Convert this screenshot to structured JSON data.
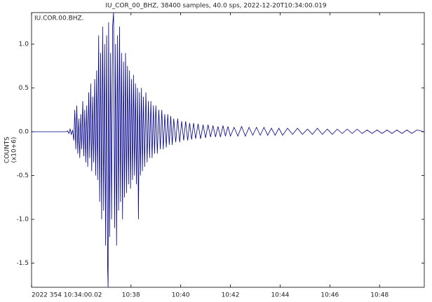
{
  "chart_data": {
    "type": "line",
    "title": "IU_COR_00_BHZ, 38400 samples, 40.0 sps, 2022-12-20T10:34:00.019",
    "ylabel": "COUNTS",
    "ylabel_units": "(x10+6)",
    "x": [
      0,
      1.4,
      1.45,
      1.5,
      1.55,
      1.6,
      1.65,
      1.7,
      1.74,
      1.78,
      1.82,
      1.86,
      1.9,
      1.94,
      1.98,
      2.02,
      2.06,
      2.1,
      2.14,
      2.18,
      2.22,
      2.26,
      2.3,
      2.34,
      2.38,
      2.42,
      2.46,
      2.5,
      2.54,
      2.58,
      2.62,
      2.66,
      2.7,
      2.74,
      2.78,
      2.82,
      2.86,
      2.9,
      2.94,
      2.98,
      3.02,
      3.06,
      3.08,
      3.1,
      3.14,
      3.18,
      3.22,
      3.26,
      3.3,
      3.34,
      3.38,
      3.42,
      3.46,
      3.5,
      3.54,
      3.58,
      3.62,
      3.66,
      3.7,
      3.74,
      3.78,
      3.82,
      3.86,
      3.9,
      3.94,
      3.98,
      4.02,
      4.06,
      4.1,
      4.14,
      4.18,
      4.22,
      4.26,
      4.3,
      4.34,
      4.38,
      4.42,
      4.46,
      4.5,
      4.55,
      4.6,
      4.65,
      4.7,
      4.75,
      4.8,
      4.85,
      4.9,
      4.95,
      5.0,
      5.06,
      5.12,
      5.18,
      5.24,
      5.3,
      5.36,
      5.42,
      5.48,
      5.54,
      5.6,
      5.66,
      5.72,
      5.8,
      5.88,
      5.96,
      6.04,
      6.12,
      6.2,
      6.28,
      6.36,
      6.44,
      6.52,
      6.6,
      6.7,
      6.8,
      6.9,
      7.0,
      7.1,
      7.2,
      7.3,
      7.4,
      7.5,
      7.6,
      7.7,
      7.8,
      7.9,
      8.0,
      8.15,
      8.3,
      8.45,
      8.6,
      8.75,
      8.9,
      9.05,
      9.2,
      9.35,
      9.5,
      9.65,
      9.8,
      9.95,
      10.1,
      10.3,
      10.5,
      10.7,
      10.9,
      11.1,
      11.3,
      11.5,
      11.7,
      11.9,
      12.1,
      12.3,
      12.5,
      12.7,
      12.9,
      13.1,
      13.3,
      13.5,
      13.7,
      13.9,
      14.1,
      14.3,
      14.5,
      14.7,
      14.9,
      15.1,
      15.3,
      15.5,
      15.8
    ],
    "series": [
      {
        "name": "IU.COR.00.BHZ.",
        "color": "#00008b",
        "values": [
          0,
          0,
          0.01,
          -0.02,
          0.03,
          -0.03,
          0.02,
          -0.1,
          0.25,
          -0.2,
          0.3,
          -0.25,
          0.15,
          -0.3,
          0.2,
          -0.2,
          0.35,
          -0.28,
          0.25,
          -0.35,
          0.3,
          -0.4,
          0.45,
          -0.3,
          0.55,
          -0.45,
          0.4,
          -0.35,
          0.6,
          -0.5,
          0.7,
          -0.55,
          1.1,
          -0.8,
          0.9,
          -1.0,
          1.2,
          -0.9,
          1.0,
          -1.3,
          1.1,
          -1.55,
          -1.78,
          1.25,
          -1.2,
          0.9,
          -1.0,
          1.2,
          1.36,
          -1.1,
          1.0,
          -1.3,
          1.1,
          -0.9,
          1.2,
          -0.8,
          0.9,
          -1.0,
          0.8,
          -0.75,
          0.9,
          -0.7,
          0.75,
          -0.6,
          0.7,
          -0.65,
          0.6,
          -0.55,
          0.65,
          -0.5,
          0.55,
          -0.6,
          0.5,
          -1.0,
          0.45,
          -0.5,
          0.5,
          -0.45,
          0.4,
          -0.4,
          0.45,
          -0.35,
          0.35,
          -0.3,
          0.35,
          -0.3,
          0.3,
          -0.25,
          0.3,
          -0.25,
          0.25,
          -0.2,
          0.25,
          -0.2,
          0.2,
          -0.18,
          0.2,
          -0.15,
          0.18,
          -0.15,
          0.15,
          -0.12,
          0.15,
          -0.12,
          0.12,
          -0.1,
          0.12,
          -0.1,
          0.1,
          -0.09,
          0.1,
          -0.08,
          0.09,
          -0.08,
          0.08,
          -0.07,
          0.08,
          -0.06,
          0.07,
          -0.06,
          0.06,
          -0.06,
          0.07,
          -0.05,
          0.06,
          -0.05,
          0.05,
          -0.05,
          0.06,
          -0.05,
          0.05,
          -0.04,
          0.05,
          -0.04,
          0.05,
          -0.04,
          0.04,
          -0.04,
          0.04,
          -0.04,
          0.04,
          -0.03,
          0.04,
          -0.03,
          0.03,
          -0.03,
          0.04,
          -0.03,
          0.03,
          -0.03,
          0.03,
          -0.02,
          0.03,
          -0.02,
          0.03,
          -0.02,
          0.02,
          -0.02,
          0.02,
          -0.02,
          0.02,
          -0.02,
          0.02,
          -0.02,
          0.02,
          -0.02,
          0.02,
          0
        ]
      }
    ],
    "xlim": [
      0,
      15.8
    ],
    "xticks": [
      {
        "value": 0,
        "label": "2022 354 10:34:00.02"
      },
      {
        "value": 4,
        "label": "10:38"
      },
      {
        "value": 6,
        "label": "10:40"
      },
      {
        "value": 8,
        "label": "10:42"
      },
      {
        "value": 10,
        "label": "10:44"
      },
      {
        "value": 12,
        "label": "10:46"
      },
      {
        "value": 14,
        "label": "10:48"
      }
    ],
    "ylim": [
      -1.776,
      1.36
    ],
    "yticks": [
      {
        "value": 1,
        "label": "1.0"
      },
      {
        "value": 0.5,
        "label": "0.5"
      },
      {
        "value": 0,
        "label": "0.0"
      },
      {
        "value": -0.5,
        "label": "-0.5"
      },
      {
        "value": -1,
        "label": "-1.0"
      },
      {
        "value": -1.5,
        "label": "-1.5"
      }
    ],
    "grid": false
  }
}
